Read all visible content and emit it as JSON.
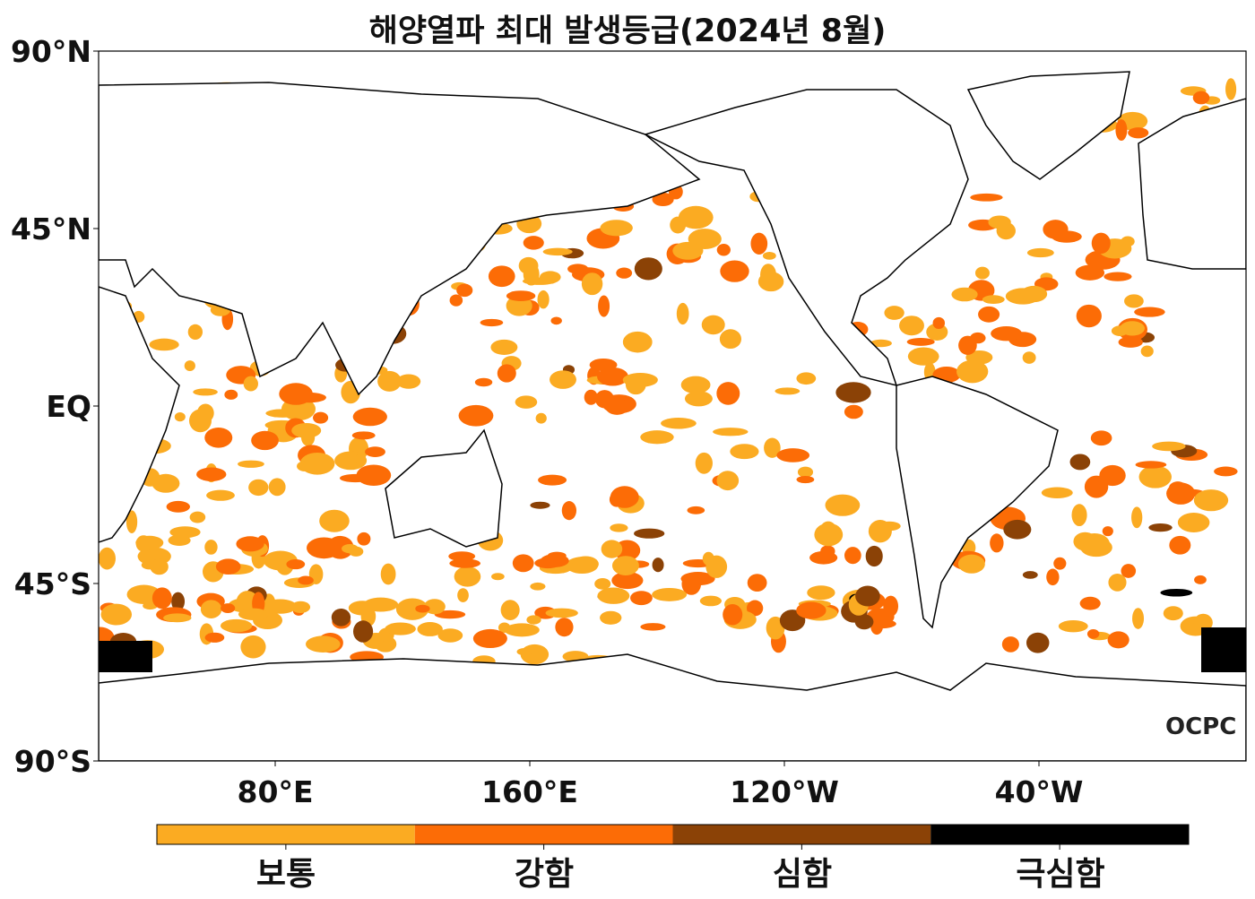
{
  "title": "해양열파 최대 발생등급(2024년 8월)",
  "map": {
    "projection": "equirectangular",
    "lat_labels": [
      "90°N",
      "45°N",
      "EQ",
      "45°S",
      "90°S"
    ],
    "lon_labels": [
      "80°E",
      "160°E",
      "120°W",
      "40°W"
    ],
    "ocean_color": "#ffffff",
    "coastline_color": "#000000"
  },
  "colorbar": {
    "categories": [
      {
        "label": "보통",
        "color": "#fbab22"
      },
      {
        "label": "강함",
        "color": "#fc6c06"
      },
      {
        "label": "심함",
        "color": "#8b4206"
      },
      {
        "label": "극심함",
        "color": "#000000"
      }
    ]
  },
  "logo": "OCPC"
}
